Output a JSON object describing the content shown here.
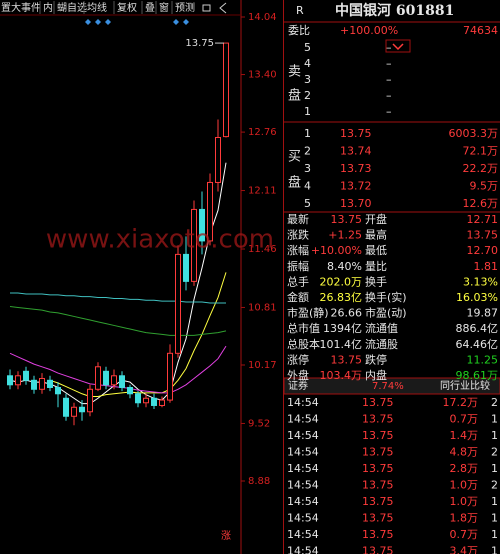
{
  "toolbar": [
    "置大事件",
    "内",
    "蝴自选",
    "均线",
    "复权",
    "叠",
    "窗",
    "预测"
  ],
  "watermark": "www.xiaxoto.com",
  "chart": {
    "price_ticks": [
      {
        "value": 14.04,
        "label": "14.04"
      },
      {
        "value": 13.4,
        "label": "13.40"
      },
      {
        "value": 12.76,
        "label": "12.76"
      },
      {
        "value": 12.11,
        "label": "12.11"
      },
      {
        "value": 11.46,
        "label": "11.46"
      },
      {
        "value": 10.81,
        "label": "10.81"
      },
      {
        "value": 10.17,
        "label": "10.17"
      },
      {
        "value": 9.52,
        "label": "9.52"
      },
      {
        "value": 8.88,
        "label": "8.88"
      }
    ],
    "price_range": [
      8.88,
      14.04
    ],
    "candles": [
      {
        "open": 10.05,
        "close": 9.95,
        "high": 10.12,
        "low": 9.9
      },
      {
        "open": 9.95,
        "close": 10.05,
        "high": 10.1,
        "low": 9.9
      },
      {
        "open": 10.1,
        "close": 10.0,
        "high": 10.15,
        "low": 9.95
      },
      {
        "open": 10.0,
        "close": 9.9,
        "high": 10.05,
        "low": 9.85
      },
      {
        "open": 9.9,
        "close": 10.02,
        "high": 10.08,
        "low": 9.85
      },
      {
        "open": 10.0,
        "close": 9.92,
        "high": 10.05,
        "low": 9.88
      },
      {
        "open": 9.92,
        "close": 9.85,
        "high": 9.98,
        "low": 9.7
      },
      {
        "open": 9.8,
        "close": 9.6,
        "high": 9.85,
        "low": 9.55
      },
      {
        "open": 9.6,
        "close": 9.7,
        "high": 9.75,
        "low": 9.5
      },
      {
        "open": 9.7,
        "close": 9.65,
        "high": 9.78,
        "low": 9.55
      },
      {
        "open": 9.65,
        "close": 9.9,
        "high": 9.95,
        "low": 9.6
      },
      {
        "open": 9.9,
        "close": 10.15,
        "high": 10.2,
        "low": 9.88
      },
      {
        "open": 10.1,
        "close": 9.95,
        "high": 10.15,
        "low": 9.9
      },
      {
        "open": 9.95,
        "close": 10.05,
        "high": 10.12,
        "low": 9.9
      },
      {
        "open": 10.05,
        "close": 9.92,
        "high": 10.1,
        "low": 9.88
      },
      {
        "open": 9.92,
        "close": 9.85,
        "high": 9.95,
        "low": 9.8
      },
      {
        "open": 9.85,
        "close": 9.75,
        "high": 9.88,
        "low": 9.7
      },
      {
        "open": 9.75,
        "close": 9.8,
        "high": 9.85,
        "low": 9.7
      },
      {
        "open": 9.8,
        "close": 9.72,
        "high": 9.85,
        "low": 9.68
      },
      {
        "open": 9.72,
        "close": 9.78,
        "high": 9.82,
        "low": 9.7
      },
      {
        "open": 9.78,
        "close": 10.3,
        "high": 10.4,
        "low": 9.75
      },
      {
        "open": 10.3,
        "close": 11.4,
        "high": 11.5,
        "low": 10.25
      },
      {
        "open": 11.4,
        "close": 11.1,
        "high": 11.6,
        "low": 11.0
      },
      {
        "open": 11.1,
        "close": 11.9,
        "high": 12.0,
        "low": 11.05
      },
      {
        "open": 11.9,
        "close": 11.55,
        "high": 12.1,
        "low": 11.4
      },
      {
        "open": 11.55,
        "close": 12.2,
        "high": 12.3,
        "low": 11.5
      },
      {
        "open": 12.2,
        "close": 12.7,
        "high": 12.9,
        "low": 12.1
      },
      {
        "open": 12.71,
        "close": 13.75,
        "high": 13.75,
        "low": 12.7
      }
    ],
    "ma": [
      {
        "color": "#ffffff",
        "values": [
          10.0,
          9.98,
          10.0,
          9.98,
          9.98,
          9.96,
          9.92,
          9.86,
          9.8,
          9.74,
          9.74,
          9.8,
          9.87,
          9.94,
          10.0,
          9.98,
          9.9,
          9.84,
          9.8,
          9.78,
          9.87,
          10.2,
          10.46,
          10.9,
          11.25,
          11.63,
          11.89,
          12.42
        ]
      },
      {
        "color": "#ffff40",
        "values": [
          null,
          null,
          null,
          null,
          null,
          10.0,
          9.97,
          9.93,
          9.89,
          9.85,
          9.82,
          9.82,
          9.84,
          9.85,
          9.86,
          9.87,
          9.86,
          9.86,
          9.86,
          9.86,
          9.9,
          10.0,
          10.13,
          10.33,
          10.51,
          10.72,
          10.92,
          11.2
        ]
      },
      {
        "color": "#e040e0",
        "values": [
          10.3,
          10.26,
          10.22,
          10.18,
          10.15,
          10.12,
          10.08,
          10.05,
          10.02,
          9.99,
          9.96,
          9.95,
          9.94,
          9.93,
          9.92,
          9.91,
          9.89,
          9.88,
          9.87,
          9.86,
          9.86,
          9.9,
          9.95,
          10.02,
          10.09,
          10.16,
          10.24,
          10.38
        ]
      },
      {
        "color": "#40c0c0",
        "values": [
          10.97,
          10.97,
          10.96,
          10.96,
          10.96,
          10.95,
          10.95,
          10.94,
          10.94,
          10.93,
          10.93,
          10.92,
          10.92,
          10.91,
          10.91,
          10.9,
          10.9,
          10.89,
          10.89,
          10.88,
          10.88,
          10.88,
          10.87,
          10.87,
          10.87,
          10.86,
          10.86,
          10.86
        ]
      },
      {
        "color": "#30a030",
        "values": [
          10.82,
          10.81,
          10.8,
          10.79,
          10.78,
          10.76,
          10.75,
          10.73,
          10.71,
          10.69,
          10.67,
          10.65,
          10.63,
          10.61,
          10.59,
          10.57,
          10.55,
          10.53,
          10.52,
          10.51,
          10.5,
          10.5,
          10.5,
          10.5,
          10.51,
          10.52,
          10.53,
          10.55
        ]
      }
    ],
    "last_label": "13.75",
    "limit_label": "涨"
  },
  "quote": {
    "header": {
      "mark": "R",
      "name": "中国银河 601881"
    },
    "weibi": {
      "label": "委比",
      "pct": "+100.00%",
      "value": 74634
    },
    "sell_side": [
      "卖",
      "盘"
    ],
    "sell": [
      {
        "level": 5,
        "price": "–"
      },
      {
        "level": 4,
        "price": "–"
      },
      {
        "level": 3,
        "price": "–"
      },
      {
        "level": 2,
        "price": "–"
      },
      {
        "level": 1,
        "price": "–"
      }
    ],
    "buy_side": [
      "买",
      "盘"
    ],
    "buy": [
      {
        "level": 1,
        "price": "13.75",
        "vol": "6003.3万"
      },
      {
        "level": 2,
        "price": "13.74",
        "vol": "72.1万"
      },
      {
        "level": 3,
        "price": "13.73",
        "vol": "22.2万"
      },
      {
        "level": 4,
        "price": "13.72",
        "vol": "9.5万"
      },
      {
        "level": 5,
        "price": "13.70",
        "vol": "12.6万"
      }
    ],
    "stats": [
      [
        "最新",
        "13.75",
        "开盘",
        "12.71"
      ],
      [
        "涨跌",
        "+1.25",
        "最高",
        "13.75"
      ],
      [
        "涨幅",
        "+10.00%",
        "最低",
        "12.70"
      ],
      [
        "振幅",
        "8.40%",
        "量比",
        "1.81"
      ],
      [
        "总手",
        "202.0万",
        "换手",
        "3.13%"
      ],
      [
        "金额",
        "26.83亿",
        "换手(实)",
        "16.03%"
      ],
      [
        "市盈(静)",
        "26.66",
        "市盈(动)",
        "19.87"
      ],
      [
        "总市值",
        "1394亿",
        "流通值",
        "886.4亿"
      ],
      [
        "总股本",
        "101.4亿",
        "流通股",
        "64.46亿"
      ],
      [
        "涨停",
        "13.75",
        "跌停",
        "11.25"
      ],
      [
        "外盘",
        "103.4万",
        "内盘",
        "98.61万"
      ]
    ],
    "tabs": [
      "证券",
      "7.74%",
      "同行业比较"
    ],
    "ticks": [
      [
        "14:54",
        "13.75",
        "17.2万",
        "2"
      ],
      [
        "14:54",
        "13.75",
        "0.7万",
        "1"
      ],
      [
        "14:54",
        "13.75",
        "1.4万",
        "1"
      ],
      [
        "14:54",
        "13.75",
        "4.8万",
        "2"
      ],
      [
        "14:54",
        "13.75",
        "2.8万",
        "1"
      ],
      [
        "14:54",
        "13.75",
        "1.0万",
        "2"
      ],
      [
        "14:54",
        "13.75",
        "1.0万",
        "1"
      ],
      [
        "14:54",
        "13.75",
        "1.8万",
        "1"
      ],
      [
        "14:54",
        "13.75",
        "0.7万",
        "1"
      ],
      [
        "14:54",
        "13.75",
        "3.4万",
        "1"
      ]
    ]
  }
}
